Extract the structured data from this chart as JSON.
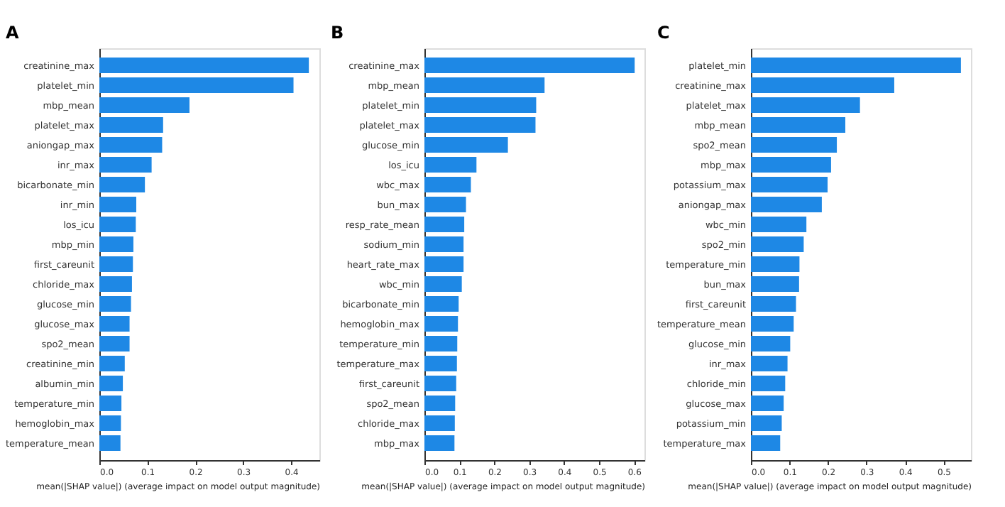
{
  "chart_data": [
    {
      "type": "bar",
      "orientation": "horizontal",
      "title": "A",
      "xlabel": "mean(|SHAP value|) (average impact on model output magnitude)",
      "grid": false,
      "legend": false,
      "categories": [
        "creatinine_max",
        "platelet_min",
        "mbp_mean",
        "platelet_max",
        "aniongap_max",
        "inr_max",
        "bicarbonate_min",
        "inr_min",
        "los_icu",
        "mbp_min",
        "first_careunit",
        "chloride_max",
        "glucose_min",
        "glucose_max",
        "spo2_mean",
        "creatinine_min",
        "albumin_min",
        "temperature_min",
        "hemoglobin_max",
        "temperature_mean"
      ],
      "series": [
        {
          "color": "#1e88e5",
          "values": [
            0.437,
            0.405,
            0.188,
            0.133,
            0.131,
            0.109,
            0.095,
            0.077,
            0.076,
            0.071,
            0.07,
            0.068,
            0.066,
            0.063,
            0.063,
            0.053,
            0.049,
            0.046,
            0.045,
            0.044
          ]
        }
      ],
      "xlim": [
        0,
        0.459
      ],
      "xticks": [
        {
          "value": 0,
          "label": "0.0"
        },
        {
          "value": 0.1,
          "label": "0.1"
        },
        {
          "value": 0.2,
          "label": "0.2"
        },
        {
          "value": 0.3,
          "label": "0.3"
        },
        {
          "value": 0.4,
          "label": "0.4"
        }
      ]
    },
    {
      "type": "bar",
      "orientation": "horizontal",
      "title": "B",
      "xlabel": "mean(|SHAP value|) (average impact on model output magnitude)",
      "grid": false,
      "legend": false,
      "categories": [
        "creatinine_max",
        "mbp_mean",
        "platelet_min",
        "platelet_max",
        "glucose_min",
        "los_icu",
        "wbc_max",
        "bun_max",
        "resp_rate_mean",
        "sodium_min",
        "heart_rate_max",
        "wbc_min",
        "bicarbonate_min",
        "hemoglobin_max",
        "temperature_min",
        "temperature_max",
        "first_careunit",
        "spo2_mean",
        "chloride_max",
        "mbp_max"
      ],
      "series": [
        {
          "color": "#1e88e5",
          "values": [
            0.602,
            0.344,
            0.32,
            0.318,
            0.239,
            0.149,
            0.133,
            0.119,
            0.114,
            0.112,
            0.112,
            0.107,
            0.098,
            0.096,
            0.094,
            0.093,
            0.091,
            0.088,
            0.087,
            0.086
          ]
        }
      ],
      "xlim": [
        0,
        0.63
      ],
      "xticks": [
        {
          "value": 0,
          "label": "0.0"
        },
        {
          "value": 0.1,
          "label": "0.1"
        },
        {
          "value": 0.2,
          "label": "0.2"
        },
        {
          "value": 0.3,
          "label": "0.3"
        },
        {
          "value": 0.4,
          "label": "0.4"
        },
        {
          "value": 0.5,
          "label": "0.5"
        },
        {
          "value": 0.6,
          "label": "0.6"
        }
      ]
    },
    {
      "type": "bar",
      "orientation": "horizontal",
      "title": "C",
      "xlabel": "mean(|SHAP value|) (average impact on model output magnitude)",
      "grid": false,
      "legend": false,
      "categories": [
        "platelet_min",
        "creatinine_max",
        "platelet_max",
        "mbp_mean",
        "spo2_mean",
        "mbp_max",
        "potassium_max",
        "aniongap_max",
        "wbc_min",
        "spo2_min",
        "temperature_min",
        "bun_max",
        "first_careunit",
        "temperature_mean",
        "glucose_min",
        "inr_max",
        "chloride_min",
        "glucose_max",
        "potassium_min",
        "temperature_max"
      ],
      "series": [
        {
          "color": "#1e88e5",
          "values": [
            0.545,
            0.372,
            0.283,
            0.245,
            0.223,
            0.208,
            0.199,
            0.184,
            0.144,
            0.137,
            0.126,
            0.125,
            0.117,
            0.111,
            0.102,
            0.095,
            0.089,
            0.085,
            0.08,
            0.076
          ]
        }
      ],
      "xlim": [
        0,
        0.571
      ],
      "xticks": [
        {
          "value": 0,
          "label": "0.0"
        },
        {
          "value": 0.1,
          "label": "0.1"
        },
        {
          "value": 0.2,
          "label": "0.2"
        },
        {
          "value": 0.3,
          "label": "0.3"
        },
        {
          "value": 0.4,
          "label": "0.4"
        },
        {
          "value": 0.5,
          "label": "0.5"
        }
      ]
    }
  ]
}
